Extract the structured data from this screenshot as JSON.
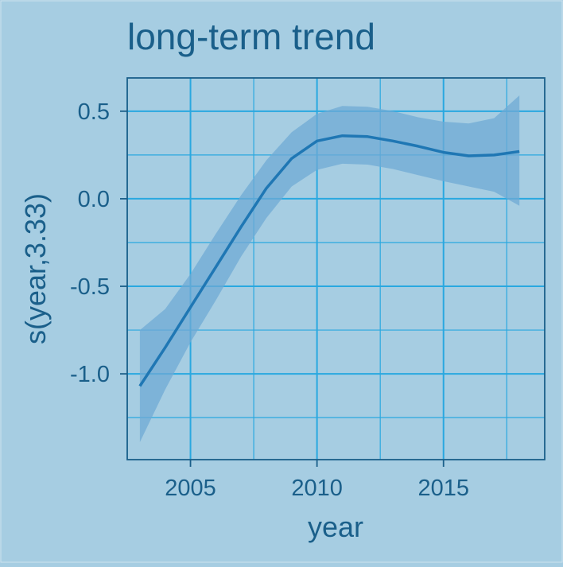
{
  "chart_data": {
    "type": "line",
    "title": "long-term trend",
    "xlabel": "year",
    "ylabel": "s(year,3.33)",
    "xlim": [
      2002.5,
      2019.0
    ],
    "ylim": [
      -1.49,
      0.69
    ],
    "x_ticks": [
      2005,
      2010,
      2015
    ],
    "x_tick_labels": [
      "2005",
      "2010",
      "2015"
    ],
    "y_ticks": [
      0.5,
      0.0,
      -0.5,
      -1.0
    ],
    "y_tick_labels": [
      "0.5",
      "0.0",
      "-0.5",
      "-1.0"
    ],
    "x_minor_gridlines": [
      2002.5,
      2007.5,
      2012.5,
      2017.5
    ],
    "y_minor_gridlines": [
      0.25,
      -0.25,
      -0.75,
      -1.25
    ],
    "grid": true,
    "series": [
      {
        "x": [
          2003,
          2004,
          2005,
          2006,
          2007,
          2008,
          2009,
          2010,
          2011,
          2012,
          2013,
          2014,
          2015,
          2016,
          2017,
          2018
        ],
        "values": [
          -1.07,
          -0.85,
          -0.62,
          -0.39,
          -0.16,
          0.06,
          0.23,
          0.33,
          0.36,
          0.355,
          0.33,
          0.3,
          0.265,
          0.245,
          0.25,
          0.27
        ],
        "lower": [
          -1.39,
          -1.09,
          -0.82,
          -0.58,
          -0.33,
          -0.11,
          0.07,
          0.165,
          0.2,
          0.195,
          0.17,
          0.135,
          0.1,
          0.07,
          0.04,
          -0.04
        ],
        "upper": [
          -0.75,
          -0.63,
          -0.43,
          -0.2,
          0.02,
          0.22,
          0.38,
          0.485,
          0.53,
          0.525,
          0.5,
          0.465,
          0.44,
          0.43,
          0.46,
          0.59
        ]
      }
    ],
    "colors": {
      "background": "#a6cde2",
      "grid": "#29a8e0",
      "line": "#1f77b4",
      "band": "#6fa9d4",
      "axis": "#1a5f8a",
      "text": "#1a5f8a"
    }
  }
}
